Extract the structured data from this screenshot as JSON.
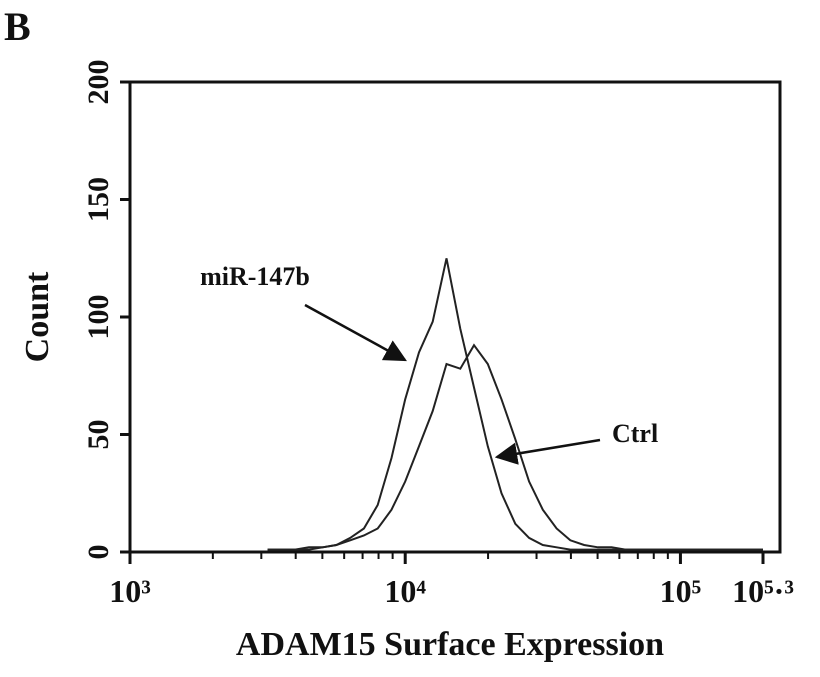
{
  "panel_label": "B",
  "chart_data": {
    "type": "line",
    "x_label": "ADAM15 Surface Expression",
    "y_label": "Count",
    "xscale": "log",
    "x": [
      3162,
      3548,
      3981,
      4467,
      5012,
      5623,
      6310,
      7079,
      7943,
      8913,
      10000,
      11220,
      12589,
      14125,
      15849,
      17783,
      19953,
      22387,
      25119,
      28184,
      31623,
      35481,
      39811,
      44668,
      50119,
      56234,
      63096,
      70795,
      79433,
      89125,
      100000,
      112202,
      125893,
      141254,
      158489,
      177828,
      199526
    ],
    "series": [
      {
        "name": "miR-147b",
        "color": "#222222",
        "values": [
          1,
          1,
          1,
          2,
          2,
          3,
          6,
          10,
          20,
          40,
          65,
          85,
          98,
          125,
          95,
          70,
          45,
          25,
          12,
          6,
          3,
          2,
          1,
          1,
          1,
          1,
          1,
          1,
          1,
          1,
          1,
          1,
          1,
          1,
          1,
          1,
          1
        ]
      },
      {
        "name": "Ctrl",
        "color": "#222222",
        "values": [
          1,
          1,
          1,
          1,
          2,
          3,
          5,
          7,
          10,
          18,
          30,
          45,
          60,
          80,
          78,
          88,
          80,
          65,
          48,
          30,
          18,
          10,
          5,
          3,
          2,
          2,
          1,
          1,
          1,
          1,
          1,
          1,
          1,
          1,
          1,
          1,
          1
        ]
      }
    ],
    "xlim": [
      1000,
      199526
    ],
    "xticks": [
      {
        "value": 1000,
        "label": "10³"
      },
      {
        "value": 10000,
        "label": "10⁴"
      },
      {
        "value": 100000,
        "label": "10⁵"
      },
      {
        "value": 199526,
        "label": "10⁵·³"
      }
    ],
    "minor_xticks": [
      2000,
      3000,
      4000,
      5000,
      6000,
      7000,
      8000,
      9000,
      20000,
      30000,
      40000,
      50000,
      60000,
      70000,
      80000,
      90000
    ],
    "ylim": [
      0,
      200
    ],
    "yticks": [
      0,
      50,
      100,
      150,
      200
    ]
  }
}
